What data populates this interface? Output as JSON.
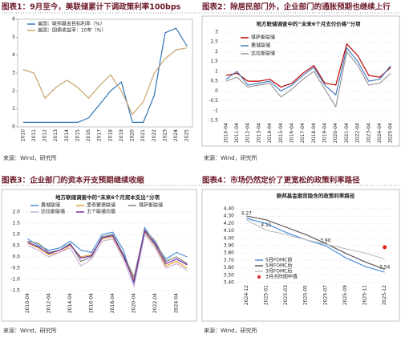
{
  "chart_data": [
    {
      "type": "line",
      "figure_title": "图表1：9月至今，美联储累计下调政策利率100bps",
      "source": "来源：Wind，研究所",
      "categories": [
        "2010",
        "2011",
        "2012",
        "2013",
        "2014",
        "2015",
        "2016",
        "2017",
        "2018",
        "2019",
        "2020",
        "2021",
        "2022",
        "2023",
        "2024",
        "2025"
      ],
      "series": [
        {
          "name": "美国：联邦基金目标利率（%）",
          "color": "#2e75b6",
          "values": [
            0.25,
            0.25,
            0.25,
            0.25,
            0.25,
            0.25,
            0.5,
            1.25,
            2.0,
            2.5,
            0.25,
            0.25,
            1.75,
            5.25,
            5.5,
            4.5
          ]
        },
        {
          "name": "美国：国债收益率：10年（%）",
          "color": "#c9a36a",
          "values": [
            3.2,
            3.0,
            1.6,
            2.2,
            2.6,
            2.2,
            1.6,
            2.3,
            2.9,
            2.0,
            0.7,
            1.4,
            3.0,
            3.8,
            4.3,
            4.4
          ]
        }
      ],
      "ylim": [
        0,
        6
      ],
      "yticks": [
        0,
        1,
        2,
        3,
        4,
        5,
        6
      ]
    },
    {
      "type": "line",
      "figure_title": "图表2：除居民部门外，企业部门的通胀预期也继续上行",
      "source": "来源：Wind，研究所",
      "title": "地方联储调查中的“未来6个月支付价格”分项",
      "categories": [
        "2010-04",
        "2011-04",
        "2012-04",
        "2013-04",
        "2014-04",
        "2015-04",
        "2016-04",
        "2017-04",
        "2018-04",
        "2019-04",
        "2020-04",
        "2021-04",
        "2022-04",
        "2023-04",
        "2024-04",
        "2025-04"
      ],
      "series": [
        {
          "name": "堪萨斯联储",
          "color": "#c00000",
          "values": [
            0.8,
            0.9,
            0.5,
            0.5,
            0.6,
            0.2,
            0.4,
            0.9,
            1.3,
            0.4,
            0.3,
            2.4,
            1.8,
            0.8,
            0.7,
            1.2
          ]
        },
        {
          "name": "费城联储",
          "color": "#4a7fc1",
          "values": [
            0.6,
            1.0,
            0.3,
            0.4,
            0.5,
            0.0,
            0.3,
            0.8,
            1.2,
            0.3,
            -0.2,
            2.2,
            1.5,
            0.5,
            0.6,
            1.3
          ]
        },
        {
          "name": "达拉斯联储",
          "color": "#9a9a9a",
          "values": [
            0.5,
            0.7,
            0.2,
            0.3,
            0.4,
            -0.3,
            0.1,
            0.6,
            1.0,
            0.1,
            -0.8,
            2.0,
            1.3,
            0.3,
            0.4,
            0.9
          ]
        }
      ],
      "ylim": [
        -1.5,
        3
      ],
      "yticks": [
        -1.5,
        -1,
        -0.5,
        0,
        0.5,
        1,
        1.5,
        2,
        2.5,
        3
      ]
    },
    {
      "type": "line",
      "figure_title": "图表3：企业部门的资本开支预期继续收缩",
      "source": "来源：Wind，研究所",
      "title": "地方联储调查中的“未来6个月资本支出”分项",
      "categories": [
        "2010-04",
        null,
        "2012-04",
        null,
        "2014-04",
        null,
        "2016-04",
        null,
        "2018-04",
        null,
        "2020-04",
        null,
        "2022-04",
        null,
        "2024-04",
        null
      ],
      "series": [
        {
          "name": "费城联储",
          "color": "#4a90d9",
          "values": [
            0.8,
            0.5,
            0.3,
            0.4,
            0.7,
            0.3,
            0.2,
            1.0,
            1.1,
            0.3,
            -1.2,
            1.3,
            0.6,
            -0.1,
            0.2,
            0.0
          ]
        },
        {
          "name": "里奇蒙德联储",
          "color": "#e3a13a",
          "values": [
            0.6,
            0.4,
            0.1,
            0.2,
            0.5,
            0.0,
            0.1,
            0.8,
            0.9,
            0.0,
            -1.0,
            1.1,
            0.5,
            -0.4,
            -0.2,
            -0.5
          ]
        },
        {
          "name": "堪萨斯联储",
          "color": "#7f7f7f",
          "values": [
            0.7,
            0.6,
            0.2,
            0.3,
            0.6,
            -0.2,
            0.0,
            0.9,
            1.0,
            0.1,
            -0.9,
            1.2,
            0.7,
            -0.2,
            0.0,
            -0.3
          ]
        },
        {
          "name": "达拉斯联储",
          "color": "#c9b2d6",
          "values": [
            0.5,
            0.3,
            0.0,
            0.2,
            0.4,
            -0.4,
            -0.1,
            0.7,
            0.8,
            -0.1,
            -1.3,
            1.0,
            0.4,
            -0.5,
            -0.3,
            -0.6
          ]
        },
        {
          "name": "五个联储均值",
          "color": "#7030a0",
          "values": [
            0.65,
            0.45,
            0.15,
            0.3,
            0.55,
            -0.05,
            0.05,
            0.85,
            0.95,
            0.05,
            -1.1,
            1.15,
            0.55,
            -0.3,
            -0.1,
            -0.35
          ]
        }
      ],
      "ylim": [
        -1.5,
        2
      ],
      "yticks": [
        {
          "value": -1.5,
          "label": "-1.5"
        },
        {
          "value": -1,
          "label": "-1.0"
        },
        {
          "value": -0.5,
          "label": "-0.5"
        },
        {
          "value": 0,
          "label": "0.0"
        },
        {
          "value": 0.5,
          "label": "0.5"
        },
        {
          "value": 1,
          "label": "1.0"
        },
        {
          "value": 1.5,
          "label": "1.5"
        },
        {
          "value": 2,
          "label": "2.0"
        }
      ]
    },
    {
      "type": "line",
      "figure_title": "图表4：市场仍然定价了更宽松的政策利率路径",
      "source": "来源：Wind，研究所",
      "title": "联邦基金期货隐含的政策利率路径",
      "categories": [
        "2024-12",
        "2025-01",
        "2025-03",
        "2025-05",
        "2025-07",
        "2025-09",
        "2025-11",
        "2025-12"
      ],
      "series": [
        {
          "name": "5月FOMC前",
          "color": "#4a90d9",
          "values": [
            4.27,
            4.2,
            4.08,
            3.98,
            3.9,
            3.74,
            3.62,
            3.54
          ],
          "value_labels": [
            "4.27",
            null,
            null,
            null,
            "3.90",
            null,
            null,
            "3.54"
          ]
        },
        {
          "name": "5月FOMC后",
          "color": "#595959",
          "values": [
            4.3,
            4.25,
            4.15,
            4.05,
            3.93,
            3.8,
            3.68,
            3.58
          ]
        },
        {
          "name": "3月FOMC后",
          "color": "#bfbfbf",
          "values": [
            4.25,
            4.11,
            4.05,
            3.98,
            3.92,
            3.86,
            3.8,
            3.72
          ],
          "value_labels": [
            null,
            "4.11",
            null,
            null,
            null,
            null,
            null,
            null
          ]
        },
        {
          "name": "3月点阵图中值",
          "color": "#e02020",
          "style": "point",
          "values": [
            null,
            null,
            null,
            null,
            null,
            null,
            null,
            3.88
          ]
        }
      ],
      "ylim": [
        3.4,
        4.4
      ],
      "yticks": [
        {
          "value": 3.4,
          "label": "3.40"
        },
        {
          "value": 3.5,
          "label": "3.50"
        },
        {
          "value": 3.6,
          "label": "3.60"
        },
        {
          "value": 3.7,
          "label": "3.70"
        },
        {
          "value": 3.8,
          "label": "3.80"
        },
        {
          "value": 3.9,
          "label": "3.90"
        },
        {
          "value": 4,
          "label": "4.00"
        },
        {
          "value": 4.1,
          "label": "4.10"
        },
        {
          "value": 4.2,
          "label": "4.20"
        },
        {
          "value": 4.3,
          "label": "4.30"
        },
        {
          "value": 4.4,
          "label": "4.40"
        }
      ]
    }
  ]
}
